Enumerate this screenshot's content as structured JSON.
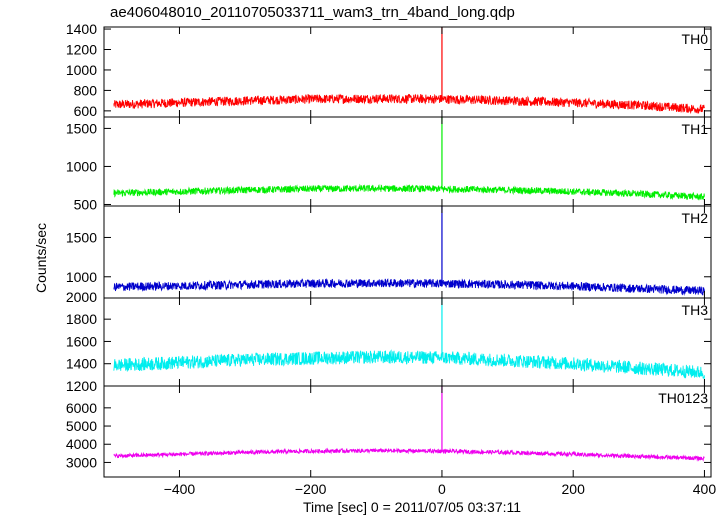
{
  "chart_data": {
    "type": "line",
    "title": "ae406048010_20110705033711_wam3_trn_4band_long.qdp",
    "xlabel": "Time [sec] 0 = 2011/07/05 03:37:11",
    "ylabel": "Counts/sec",
    "xlim": [
      -515,
      410
    ],
    "x_ticks": [
      -400,
      -200,
      0,
      200,
      400
    ],
    "x_tick_labels": [
      "−400",
      "−200",
      "0",
      "200",
      "400"
    ],
    "series": [
      {
        "name": "TH0",
        "color": "#ff0000",
        "ylim": [
          540,
          1420
        ],
        "y_ticks": [
          600,
          800,
          1000,
          1200,
          1400
        ],
        "x": [
          -500,
          -400,
          -300,
          -200,
          -100,
          0,
          100,
          200,
          300,
          400
        ],
        "values": [
          660,
          680,
          700,
          715,
          720,
          715,
          700,
          680,
          655,
          615
        ],
        "noise_amp": 45,
        "spike": {
          "x": 0,
          "peak": 1420
        }
      },
      {
        "name": "TH1",
        "color": "#00ee00",
        "ylim": [
          480,
          1650
        ],
        "y_ticks": [
          500,
          1000,
          1500
        ],
        "x": [
          -500,
          -400,
          -300,
          -200,
          -100,
          0,
          100,
          200,
          300,
          400
        ],
        "values": [
          650,
          670,
          690,
          705,
          710,
          705,
          690,
          670,
          640,
          600
        ],
        "noise_amp": 45,
        "spike": {
          "x": 0,
          "peak": 1650
        }
      },
      {
        "name": "TH2",
        "color": "#0000cc",
        "ylim": [
          730,
          1900
        ],
        "y_ticks": [
          1000,
          1500
        ],
        "x": [
          -500,
          -400,
          -300,
          -200,
          -100,
          0,
          100,
          200,
          300,
          400
        ],
        "values": [
          870,
          885,
          900,
          915,
          920,
          915,
          900,
          880,
          850,
          820
        ],
        "noise_amp": 55,
        "spike": {
          "x": 0,
          "peak": 1900
        }
      },
      {
        "name": "TH3",
        "color": "#00eeee",
        "ylim": [
          1200,
          1990
        ],
        "y_ticks": [
          1200,
          1400,
          1600,
          1800
        ],
        "x": [
          -500,
          -400,
          -300,
          -200,
          -100,
          0,
          100,
          200,
          300,
          400
        ],
        "values": [
          1385,
          1410,
          1435,
          1450,
          1460,
          1455,
          1430,
          1400,
          1360,
          1320
        ],
        "noise_amp": 60,
        "spike": {
          "x": 0,
          "peak": 1990
        }
      },
      {
        "name": "TH0123",
        "color": "#ee00ee",
        "ylim": [
          2200,
          7200
        ],
        "y_ticks": [
          3000,
          4000,
          5000,
          6000
        ],
        "x": [
          -500,
          -400,
          -300,
          -200,
          -100,
          0,
          100,
          200,
          300,
          400
        ],
        "values": [
          3350,
          3450,
          3550,
          3620,
          3650,
          3620,
          3550,
          3450,
          3330,
          3220
        ],
        "noise_amp": 110,
        "spike": {
          "x": 0,
          "peak": 7200
        }
      }
    ],
    "extra_boundary_label": "2000",
    "grid": false,
    "legend": "panel labels at top-right of each panel"
  }
}
